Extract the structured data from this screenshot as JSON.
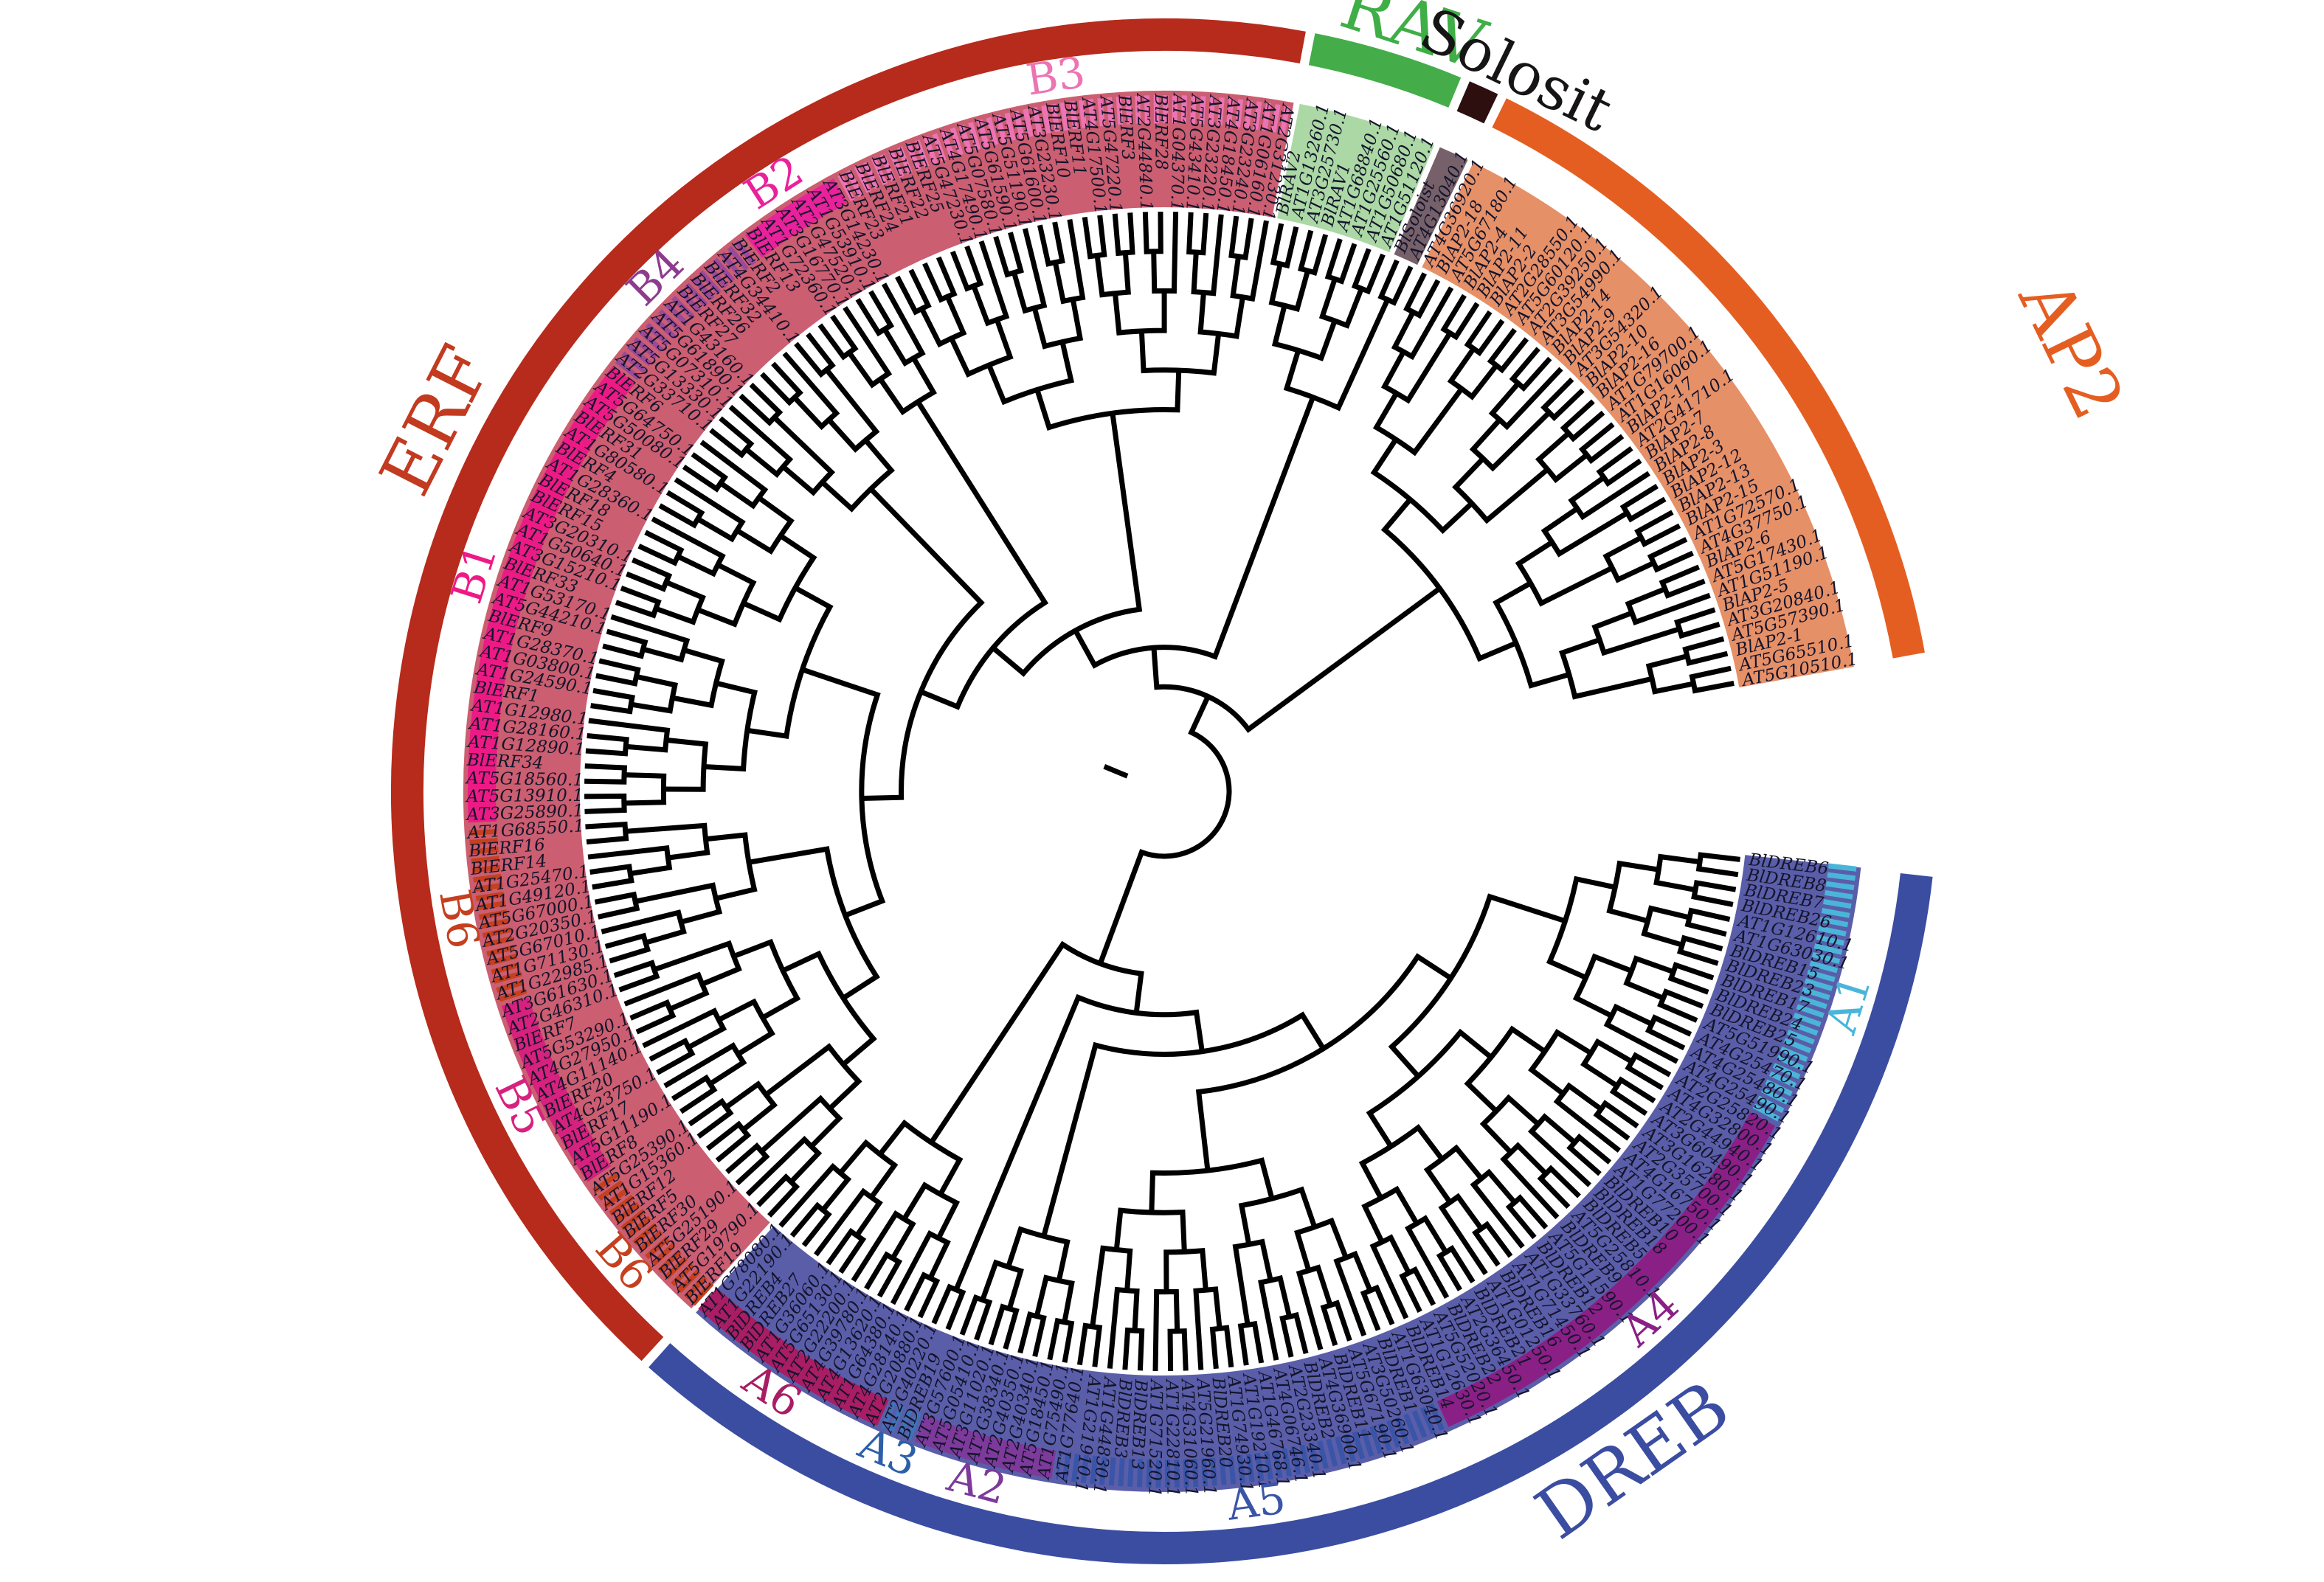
{
  "figure": {
    "type": "circular-phylogenetic-tree",
    "families": [
      {
        "id": "DREB",
        "label": "DREB",
        "ring_color": "#3b4da1",
        "band_color": "#5a5ea9",
        "label_color": "#3b4da1"
      },
      {
        "id": "ERF",
        "label": "ERF",
        "ring_color": "#b62b1c",
        "band_color": "#cb5e70",
        "label_color": "#c23a1f"
      },
      {
        "id": "RAV",
        "label": "RAV",
        "ring_color": "#44ad49",
        "band_color": "#abd8a4",
        "label_color": "#3fae47"
      },
      {
        "id": "Solosit",
        "label": "Solosit",
        "ring_color": "#2d0f10",
        "band_color": "#76616a",
        "label_color": "#161414"
      },
      {
        "id": "AP2",
        "label": "AP2",
        "ring_color": "#e55e21",
        "band_color": "#e69068",
        "label_color": "#e55e21"
      }
    ],
    "groups": [
      {
        "id": "A1",
        "label": "A1",
        "family": "DREB",
        "style": "hatched",
        "color": "#4ab5d9",
        "label_color": "#4ab5d9",
        "leaves": [
          "BlDREB6",
          "BlDREB8",
          "BlDREB7",
          "BlDREB26",
          "AT1G12610.1",
          "AT1G63030.1",
          "BlDREB15",
          "BlDREB23",
          "BlDREB17",
          "BlDREB24",
          "BlDREB25",
          "AT5G51990.1",
          "AT4G25470.1",
          "AT4G25480.1",
          "AT4G25490.1"
        ]
      },
      {
        "id": "A4",
        "label": "A4",
        "family": "DREB",
        "style": "solid",
        "color": "#8a1f86",
        "label_color": "#8a1f86",
        "leaves": [
          "AT2G25820.1",
          "AT4G32800.1",
          "AT2G44940.1",
          "AT3G60490.1",
          "AT3G16280.1",
          "AT2G35700.1",
          "AT4G16750.1",
          "AT1G77200.1",
          "BlDREB10",
          "BlDREB18",
          "BlDREB5",
          "AT5G25810.1",
          "BlDREB9",
          "AT5G11590.1",
          "BlDREB12",
          "AT1G33760.1",
          "AT1G71450.1",
          "BlDREB16",
          "AT1G01250.1",
          "BlDREB21",
          "AT2G36450.1",
          "BlDREB22",
          "AT5G52020.1",
          "AT1G12630.1",
          "BlDREB14"
        ]
      },
      {
        "id": "A5",
        "label": "A5",
        "family": "DREB",
        "style": "hatched",
        "color": "#3a55a8",
        "label_color": "#3a55a8",
        "leaves": [
          "AT1G63040.1",
          "BlDREB1",
          "AT3G50260.1",
          "AT5G67190.1",
          "BlDREB11",
          "AT4G36900.1",
          "BlDREB2",
          "AT2G23340.1",
          "AT4G06746.1",
          "AT1G46768.1",
          "AT1G19210.1",
          "AT1G74930.1",
          "BlDREB20",
          "AT5G21960.1",
          "AT4G31060.1",
          "AT1G22810.1",
          "AT1G71520.1",
          "BlDREB13",
          "BlDREB3",
          "AT1G44830.1",
          "AT1G21910.1",
          "AT1G77640.1"
        ]
      },
      {
        "id": "A2",
        "label": "A2",
        "family": "DREB",
        "style": "solid",
        "color": "#7d3a9b",
        "label_color": "#7d3a9b",
        "leaves": [
          "AT1G75490.1",
          "AT5G18450.1",
          "AT2G40340.1",
          "AT2G40350.1",
          "AT2G38340.1",
          "AT3G11020.1",
          "AT5G05410.1",
          "AT3G57600.1"
        ]
      },
      {
        "id": "A3",
        "label": "A3",
        "family": "DREB",
        "style": "hatched",
        "color": "#3f74b8",
        "label_color": "#2d5fa8",
        "leaves": [
          "BlDREB19",
          "AT2G40220.1"
        ]
      },
      {
        "id": "A6",
        "label": "A6",
        "family": "DREB",
        "style": "solid",
        "color": "#a81d64",
        "label_color": "#a81d64",
        "leaves": [
          "AT2G20880.1",
          "AT4G28140.1",
          "AT1G64380.1",
          "AT4G13620.1",
          "AT4G39780.1",
          "AT2G22200.1",
          "AT5G65130.1",
          "AT1G36060.1",
          "BlDREB27",
          "BlDREB4",
          "AT1G22190.1",
          "AT1G78080.1"
        ]
      },
      {
        "id": "B6",
        "label": "B6",
        "family": "ERF",
        "style": "hatched",
        "color": "#c5401f",
        "label_color": "#c5401f",
        "leaves": [
          "BlERF19",
          "AT5G19790.1",
          "BlERF29",
          "AT5G25190.1",
          "BlERF30",
          "BlERF5",
          "BlERF12",
          "AT1G15360.1",
          "AT5G25390.1"
        ]
      },
      {
        "id": "B5",
        "label": "B5",
        "family": "ERF",
        "style": "solid",
        "color": "#d6217e",
        "label_color": "#d6217e",
        "leaves": [
          "BlERF8",
          "AT5G11190.1",
          "BlERF17",
          "AT4G23750.1",
          "BlERF20",
          "AT4G11140.1",
          "AT4G27950.1",
          "AT5G53290.1",
          "BlERF7",
          "AT2G46310.1",
          "AT3G61630.1"
        ]
      },
      {
        "id": "B6b",
        "label": "B6",
        "family": "ERF",
        "style": "hatched",
        "color": "#c5401f",
        "label_color": "#c5401f",
        "leaves": [
          "AT1G22985.1",
          "AT1G71130.1",
          "AT5G67010.1",
          "AT2G20350.1",
          "AT5G67000.1",
          "AT1G49120.1",
          "AT1G25470.1",
          "BlERF14",
          "BlERF16",
          "AT1G68550.1"
        ]
      },
      {
        "id": "B1",
        "label": "B1",
        "family": "ERF",
        "style": "solid",
        "color": "#ed1a86",
        "label_color": "#ed1a86",
        "leaves": [
          "AT3G25890.1",
          "AT5G13910.1",
          "AT5G18560.1",
          "BlERF34",
          "AT1G12890.1",
          "AT1G28160.1",
          "AT1G12980.1",
          "BlERF1",
          "AT1G24590.1",
          "AT1G03800.1",
          "AT1G28370.1",
          "BlERF9",
          "AT5G44210.1",
          "AT1G53170.1",
          "BlERF33",
          "AT3G15210.1",
          "AT1G50640.1",
          "AT3G20310.1",
          "BlERF15",
          "BlERF18",
          "AT1G28360.1",
          "BlERF4",
          "AT1G80580.1",
          "BlERF31",
          "AT5G50080.1",
          "AT5G64750.1",
          "BlERF6"
        ]
      },
      {
        "id": "B4",
        "label": "B4",
        "family": "ERF",
        "style": "hatched",
        "color": "#9b4a9b",
        "label_color": "#8e3a8e",
        "leaves": [
          "AT2G33710.1",
          "AT5G13330.1",
          "AT5G07310.1",
          "AT5G61890.1",
          "AT1G43160.1",
          "BlERF27",
          "BlERF26",
          "BlERF32",
          "AT4G34410.1",
          "BlERF2"
        ]
      },
      {
        "id": "B2",
        "label": "B2",
        "family": "ERF",
        "style": "solid",
        "color": "#e9219b",
        "label_color": "#e9219b",
        "leaves": [
          "BlERF13",
          "AT1G72360.1",
          "AT3G16770.1",
          "AT2G47520.1",
          "AT1G53910.1",
          "AT3G14230.1"
        ]
      },
      {
        "id": "B3",
        "label": "B3",
        "family": "ERF",
        "style": "hatched",
        "color": "#ec74b3",
        "label_color": "#ec74b3",
        "leaves": [
          "BlERF23",
          "BlERF24",
          "BlERF21",
          "BlERF22",
          "BlERF25",
          "AT5G47230.1",
          "AT4G17490.1",
          "AT5G07580.1",
          "AT5G61590.1",
          "AT5G51190.1",
          "AT5G61600.1",
          "AT3G23230.1",
          "BlERF10",
          "BlERF11",
          "AT4G17500.1",
          "AT5G47220.1",
          "BlERF3",
          "AT2G44840.1",
          "BlERF28",
          "AT1G04370.1",
          "AT5G43410.1",
          "AT3G23220.1",
          "AT4G18450.1",
          "AT3G23240.1",
          "AT1G06160.1",
          "AT2G31230.1"
        ]
      },
      {
        "id": "RAVg",
        "label": "",
        "family": "RAV",
        "style": "none",
        "color": "#44ad49",
        "label_color": "#3fae47",
        "leaves": [
          "BlRAV2",
          "AT1G13260.1",
          "AT3G25730.1",
          "BlRAV1",
          "AT1G68840.1",
          "AT1G25560.1",
          "AT1G50680.1",
          "AT1G51120.1"
        ]
      },
      {
        "id": "Solog",
        "label": "",
        "family": "Solosit",
        "style": "none",
        "color": "#76616a",
        "label_color": "#161414",
        "leaves": [
          "BlSoloist",
          "AT4G13040.1"
        ]
      },
      {
        "id": "AP2g",
        "label": "",
        "family": "AP2",
        "style": "none",
        "color": "#e55e21",
        "label_color": "#e55e21",
        "leaves": [
          "AT4G36920.1",
          "BlAP2-18",
          "AT5G67180.1",
          "BlAP2-4",
          "BlAP2-11",
          "BlAP2-2",
          "AT2G28550.1",
          "AT5G60120.1",
          "AT2G39250.1",
          "AT3G54990.1",
          "BlAP2-14",
          "BlAP2-9",
          "AT3G54320.1",
          "BlAP2-10",
          "BlAP2-16",
          "AT1G79700.1",
          "AT1G16060.1",
          "BlAP2-17",
          "AT2G41710.1",
          "BlAP2-7",
          "BlAP2-8",
          "BlAP2-3",
          "BlAP2-12",
          "BlAP2-13",
          "BlAP2-15",
          "AT1G72570.1",
          "AT4G37750.1",
          "BlAP2-6",
          "AT5G17430.1",
          "AT1G51190.1",
          "BlAP2-5",
          "AT3G20840.1",
          "AT5G57390.1",
          "BlAP2-1",
          "AT5G65510.1",
          "AT5G10510.1"
        ]
      }
    ]
  }
}
